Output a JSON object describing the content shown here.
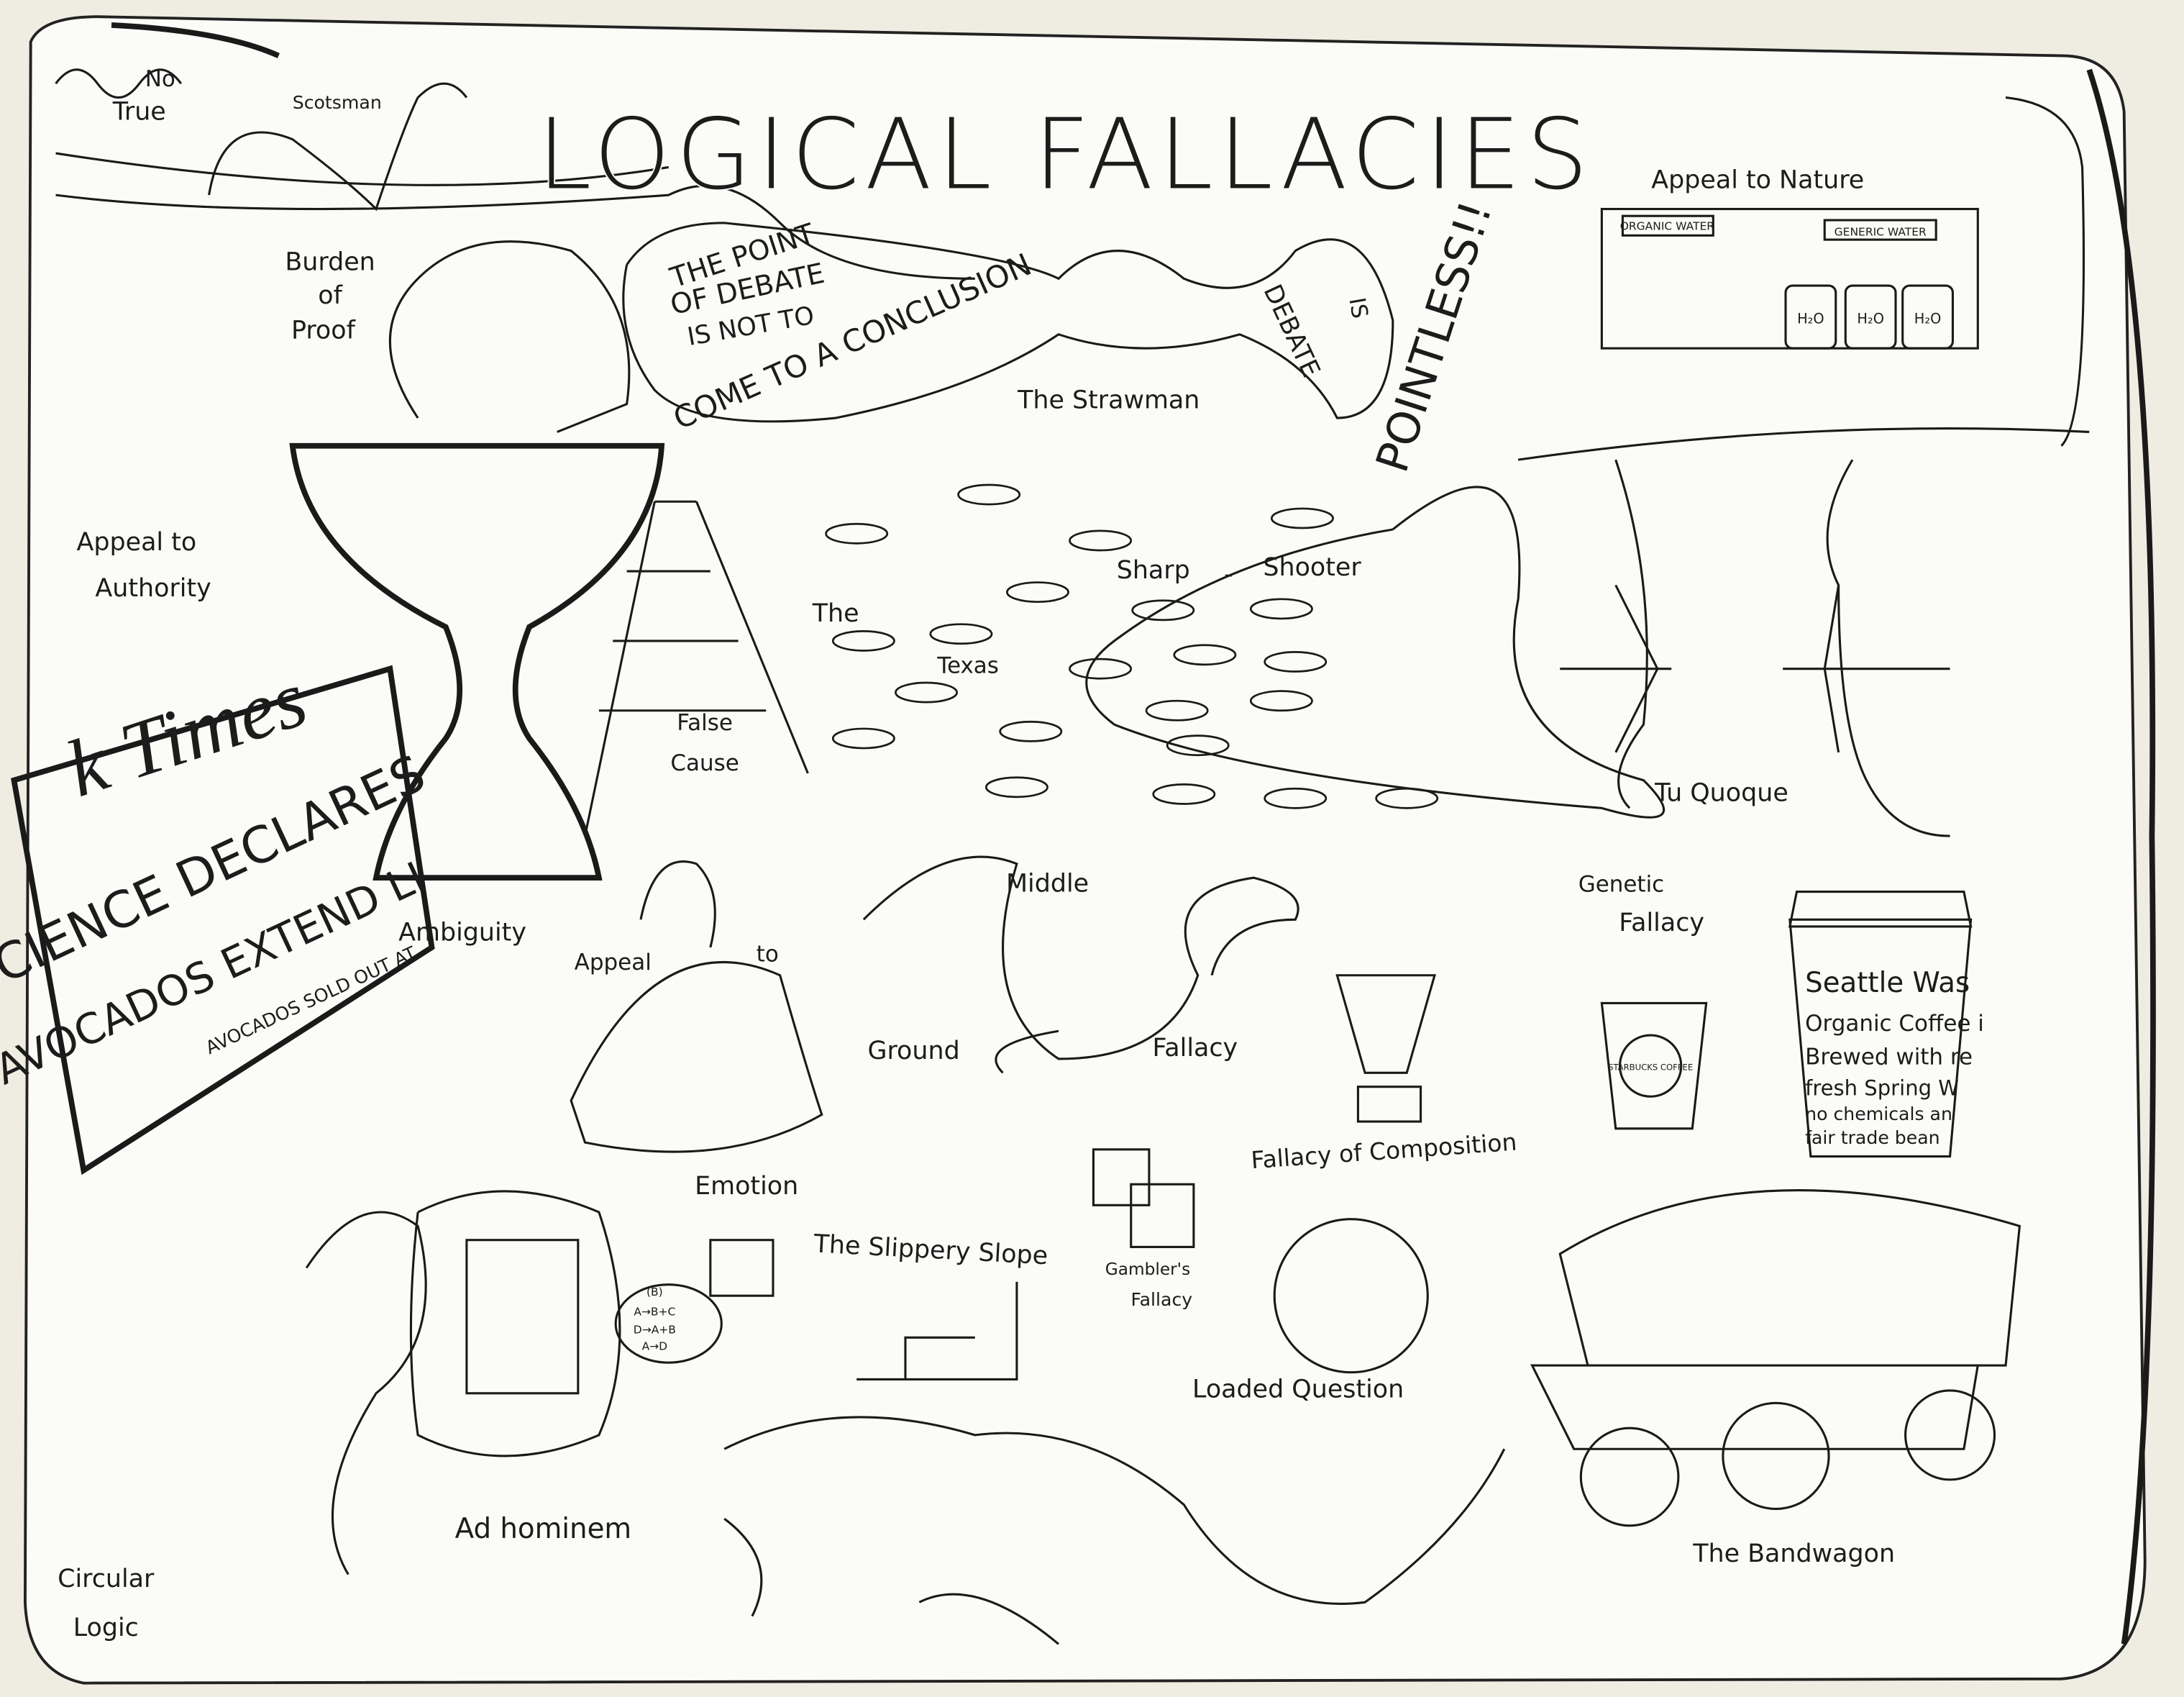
{
  "title": "LOGICAL FALLACIES",
  "labels": [
    "No",
    "True",
    "Scotsman",
    "Burden",
    "of",
    "Proof",
    "Appeal to",
    "Authority",
    "The Strawman",
    "Appeal to Nature",
    "The",
    "Texas",
    "Sharp",
    "-",
    "Shooter",
    "False",
    "Cause",
    "Ambiguity",
    "Appeal",
    "to",
    "Emotion",
    "Middle",
    "Ground",
    "Fallacy",
    "Tu Quoque",
    "Genetic",
    "Fallacy",
    "Fallacy of Composition",
    "The Slippery Slope",
    "Gambler's",
    "Fallacy",
    "Loaded Question",
    "Ad hominem",
    "Circular",
    "Logic",
    "The Bandwagon"
  ],
  "strawman_banner": [
    "THE POINT",
    "OF DEBATE",
    "IS NOT TO",
    "COME TO A CONCLUSION",
    "DEBATE",
    "IS",
    "POINTLESS!!"
  ],
  "nature_signs": [
    "ORGANIC WATER",
    "GENERIC WATER"
  ],
  "jars": [
    "H₂O",
    "H₂O",
    "H₂O"
  ],
  "newspaper": [
    "k Times",
    "SCIENCE DECLARES",
    "AVOCADOS EXTEND LI",
    "AVOCADOS SOLD OUT AT"
  ],
  "small_cup": "STARBUCKS COFFEE",
  "big_cup": [
    "Seattle Was",
    "Organic Coffee i",
    "Brewed with re",
    "fresh Spring W",
    "no chemicals an",
    "fair trade bean"
  ],
  "speech_bubble": [
    "(B)",
    "A→B+C",
    "D→A+B",
    "A→D"
  ]
}
